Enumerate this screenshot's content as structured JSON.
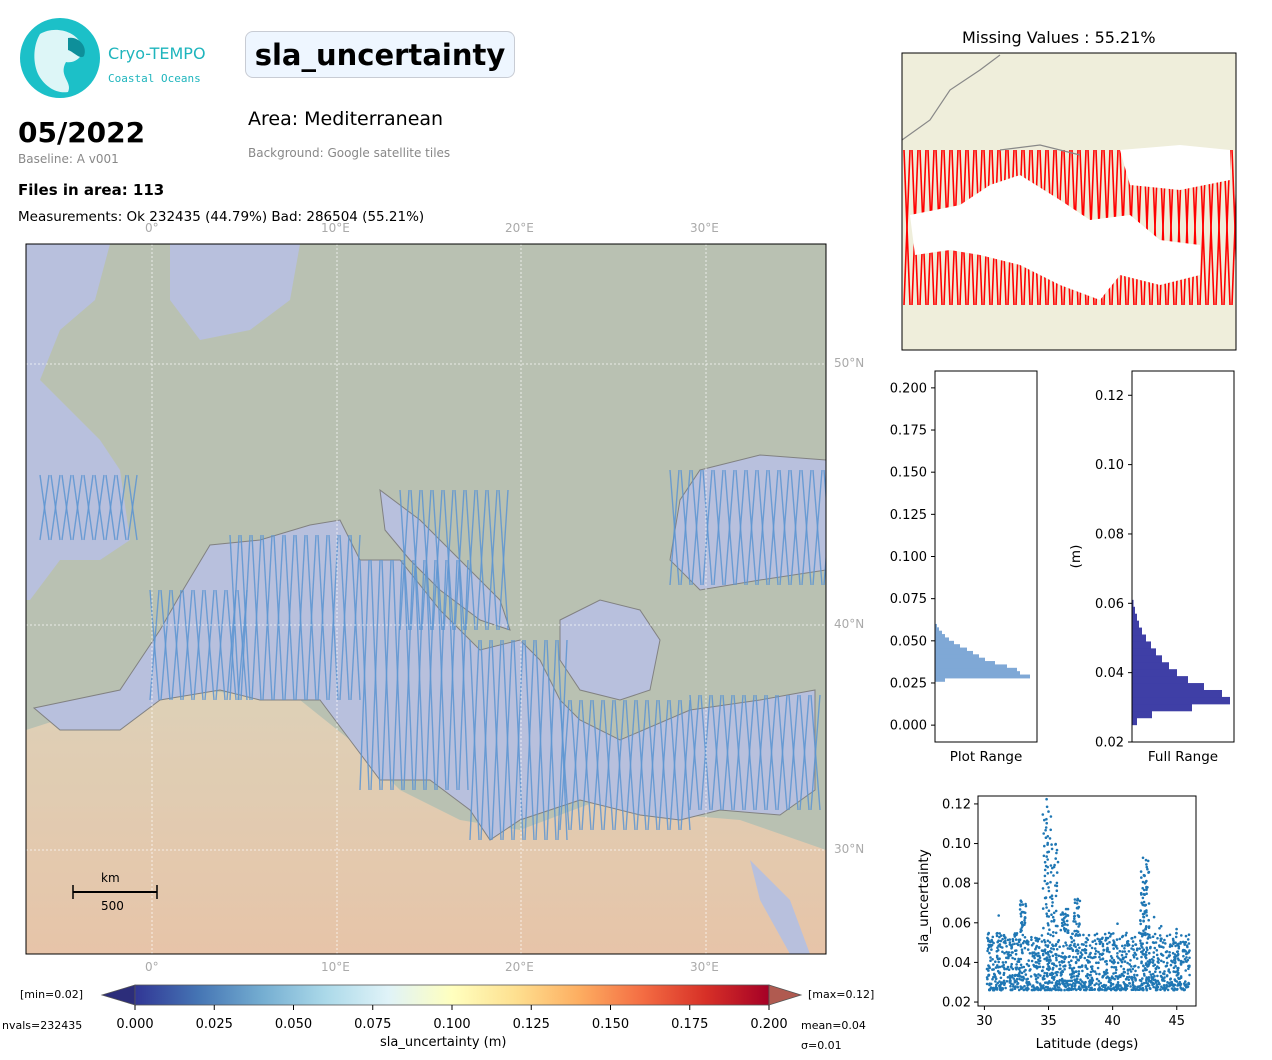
{
  "header": {
    "logo_line1": "Cryo-TEMPO",
    "logo_line2": "Coastal Oceans",
    "variable": "sla_uncertainty",
    "date": "05/2022",
    "baseline": "Baseline: A v001",
    "files": "Files in area: 113",
    "measurements": "Measurements: Ok 232435 (44.79%) Bad: 286504 (55.21%)",
    "area": "Area: Mediterranean",
    "background": "Background: Google satellite tiles"
  },
  "map": {
    "lon_labels": [
      "0°",
      "10°E",
      "20°E",
      "30°E"
    ],
    "lat_labels": [
      "50°N",
      "40°N",
      "30°N"
    ],
    "scale_unit": "km",
    "scale_value": "500",
    "colors": {
      "sea": "#a9b3d6",
      "land": "#a9b39e",
      "desert": "#d9b99a",
      "track": "#3a7fc9"
    }
  },
  "colorbar": {
    "min_label": "[min=0.02]",
    "max_label": "[max=0.12]",
    "nvals": "nvals=232435",
    "mean": "mean=0.04",
    "sigma": "σ=0.01",
    "label": "sla_uncertainty (m)",
    "ticks": [
      "0.000",
      "0.025",
      "0.050",
      "0.075",
      "0.100",
      "0.125",
      "0.150",
      "0.175",
      "0.200"
    ],
    "range": [
      0.0,
      0.2
    ],
    "colors": [
      "#313695",
      "#4575b4",
      "#74add1",
      "#abd9e9",
      "#e0f3f8",
      "#ffffbf",
      "#fee090",
      "#fdae61",
      "#f46d43",
      "#d73027",
      "#a50026"
    ]
  },
  "missing": {
    "title": "Missing Values : 55.21%",
    "colors": {
      "land": "#efeedb",
      "missing": "#ff0000",
      "valid": "#ffffff"
    }
  },
  "chart_data": [
    {
      "type": "bar",
      "orientation": "horizontal",
      "xlabel": "Plot Range",
      "ylim": [
        -0.01,
        0.21
      ],
      "y_ticks": [
        "0.000",
        "0.025",
        "0.050",
        "0.075",
        "0.100",
        "0.125",
        "0.150",
        "0.175",
        "0.200"
      ],
      "bins": [
        0.026,
        0.028,
        0.03,
        0.032,
        0.034,
        0.036,
        0.038,
        0.04,
        0.042,
        0.044,
        0.046,
        0.048,
        0.05,
        0.052,
        0.054,
        0.056,
        0.058
      ],
      "values": [
        0.1,
        0.95,
        0.85,
        0.82,
        0.72,
        0.6,
        0.5,
        0.44,
        0.38,
        0.32,
        0.25,
        0.19,
        0.14,
        0.1,
        0.07,
        0.04,
        0.02
      ],
      "color": "#7fa8d6"
    },
    {
      "type": "bar",
      "orientation": "horizontal",
      "xlabel": "Full Range",
      "ylabel": "(m)",
      "ylim": [
        0.02,
        0.127
      ],
      "y_ticks": [
        "0.02",
        "0.04",
        "0.06",
        "0.08",
        "0.10",
        "0.12"
      ],
      "bins": [
        0.025,
        0.027,
        0.029,
        0.031,
        0.033,
        0.035,
        0.037,
        0.039,
        0.041,
        0.043,
        0.045,
        0.047,
        0.049,
        0.051,
        0.053,
        0.055,
        0.057,
        0.059
      ],
      "values": [
        0.05,
        0.2,
        0.6,
        0.98,
        0.9,
        0.72,
        0.56,
        0.45,
        0.37,
        0.3,
        0.24,
        0.19,
        0.14,
        0.1,
        0.07,
        0.05,
        0.03,
        0.015
      ],
      "color": "#3f3fa6"
    },
    {
      "type": "scatter",
      "xlabel": "Latitude (degs)",
      "ylabel": "sla_uncertainty",
      "xlim": [
        29.5,
        46.5
      ],
      "ylim": [
        0.018,
        0.124
      ],
      "x_ticks": [
        "30",
        "35",
        "40",
        "45"
      ],
      "y_ticks": [
        "0.02",
        "0.04",
        "0.06",
        "0.08",
        "0.10",
        "0.12"
      ],
      "x_range": [
        30.2,
        46.0
      ],
      "y_core": [
        0.026,
        0.055
      ],
      "spikes": [
        {
          "x": 34.8,
          "y": 0.121
        },
        {
          "x": 35.0,
          "y": 0.113
        },
        {
          "x": 35.5,
          "y": 0.101
        },
        {
          "x": 42.6,
          "y": 0.094
        },
        {
          "x": 42.4,
          "y": 0.085
        },
        {
          "x": 33.0,
          "y": 0.071
        },
        {
          "x": 37.2,
          "y": 0.073
        },
        {
          "x": 36.3,
          "y": 0.066
        }
      ],
      "color": "#1f77b4"
    }
  ]
}
